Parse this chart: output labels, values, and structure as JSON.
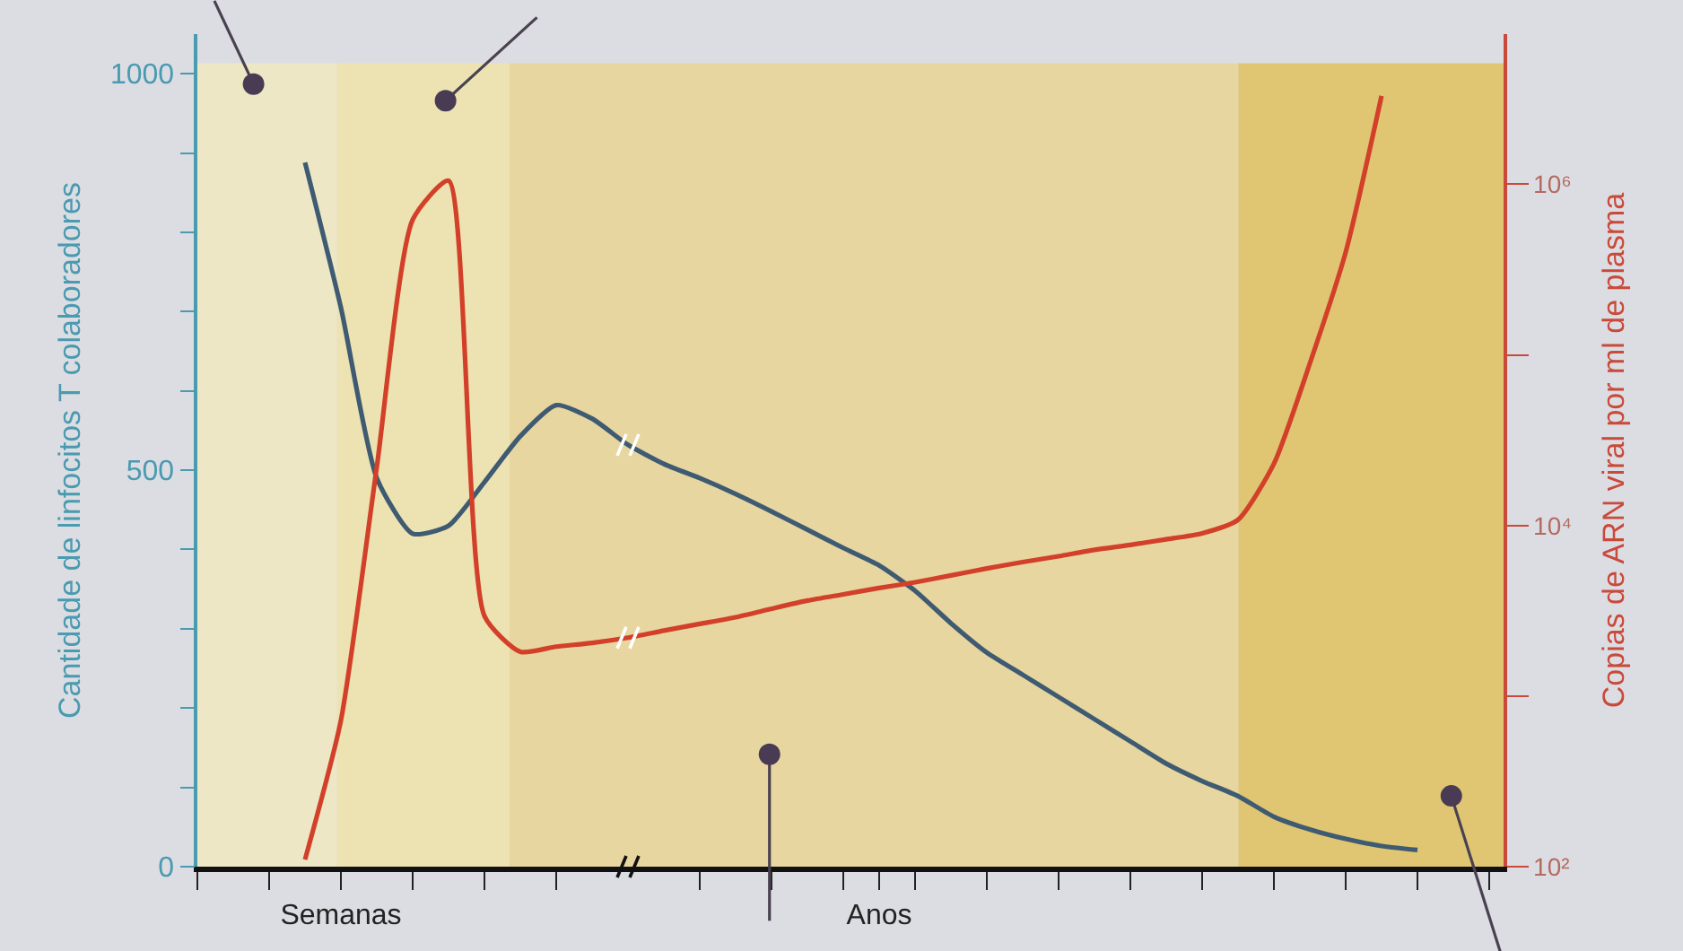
{
  "chart_data": {
    "type": "line",
    "ylabel": "Cantidade de linfocitos T colaboradores",
    "y2label": "Copias de ARN viral por ml de plasma",
    "categories": [
      null,
      null,
      null,
      null,
      "Semanas",
      null,
      null,
      null,
      null,
      null,
      null,
      null,
      null,
      null,
      null,
      null,
      null,
      null,
      null,
      "Anos",
      null,
      null,
      null,
      null,
      null,
      null,
      null,
      null,
      null,
      null,
      null,
      null,
      null,
      null,
      null,
      null,
      null
    ],
    "ylim": [
      0,
      1050
    ],
    "yticks": [
      0,
      {
        "value": 100,
        "label": null
      },
      {
        "value": 200,
        "label": null
      },
      {
        "value": 300,
        "label": null
      },
      {
        "value": 400,
        "label": null
      },
      500,
      {
        "value": 600,
        "label": null
      },
      {
        "value": 700,
        "label": null
      },
      {
        "value": 800,
        "label": null
      },
      {
        "value": 900,
        "label": null
      },
      1000
    ],
    "y2lim": [
      100,
      7600000
    ],
    "y2ticks": [
      {
        "value": 100,
        "label": "10²"
      },
      {
        "value": 1000,
        "label": null
      },
      {
        "value": 10000,
        "label": "10⁴"
      },
      {
        "value": 100000,
        "label": null
      },
      {
        "value": 1000000,
        "label": "10⁶"
      }
    ],
    "log": "y2",
    "grid": false,
    "marker": "none",
    "line_style": "solid",
    "series": [
      {
        "color": "#3f5b72",
        "values": [
          null,
          null,
          null,
          888,
          705,
          490,
          420,
          430,
          485,
          543,
          582,
          565,
          532,
          508,
          490,
          470,
          448,
          425,
          402,
          380,
          348,
          307,
          270,
          242,
          214,
          186,
          158,
          130,
          108,
          89,
          63,
          47,
          35,
          26,
          21,
          null,
          null
        ]
      },
      {
        "color": "#d2402a",
        "axis": "y2",
        "values": [
          null,
          null,
          null,
          110,
          720,
          22000,
          620000,
          1050000,
          2950,
          1820,
          1950,
          2050,
          2200,
          2420,
          2650,
          2900,
          3250,
          3630,
          3950,
          4300,
          4650,
          5100,
          5600,
          6100,
          6600,
          7200,
          7700,
          8300,
          9000,
          10800,
          23000,
          89000,
          400000,
          3300000,
          null,
          null,
          null
        ]
      }
    ]
  }
}
